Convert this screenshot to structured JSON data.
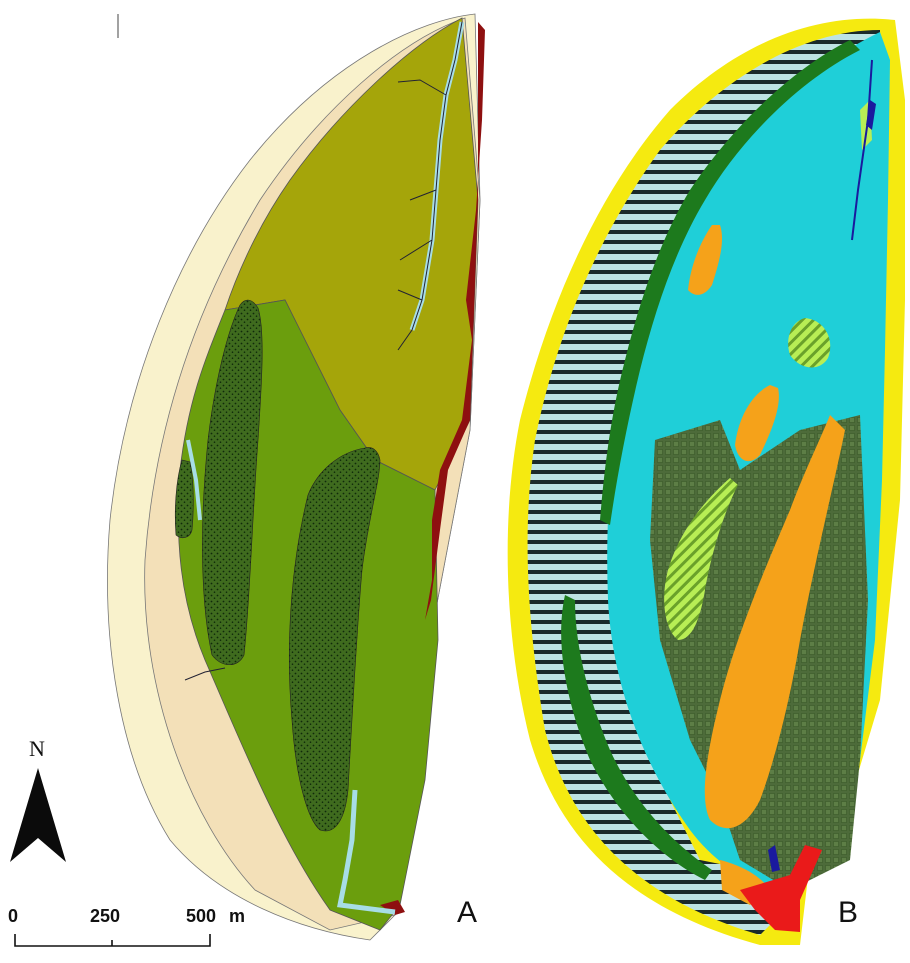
{
  "panels": {
    "a": {
      "label": "A"
    },
    "b": {
      "label": "B"
    }
  },
  "north_arrow": {
    "label": "N"
  },
  "scale_bar": {
    "ticks": [
      "0",
      "250",
      "500"
    ],
    "unit": "m"
  },
  "colors": {
    "outer_sand": "#f9f2cc",
    "inner_sand": "#f3e0b8",
    "olive_zone": "#a5a50a",
    "green_zone": "#6b9e0d",
    "dotted_patch": "#3f6b1e",
    "water_channel": "#a7dde6",
    "dark_red_edge": "#8e1010",
    "b_yellow_border": "#f5ea10",
    "b_cyan_base": "#1fcfd8",
    "b_dark_green": "#1d7a1d",
    "b_orange": "#f5a21a",
    "b_light_green": "#b8ee55",
    "b_red": "#ea1a1a",
    "b_navy": "#1a1a9e",
    "b_grid_green": "#4d6b3a"
  }
}
